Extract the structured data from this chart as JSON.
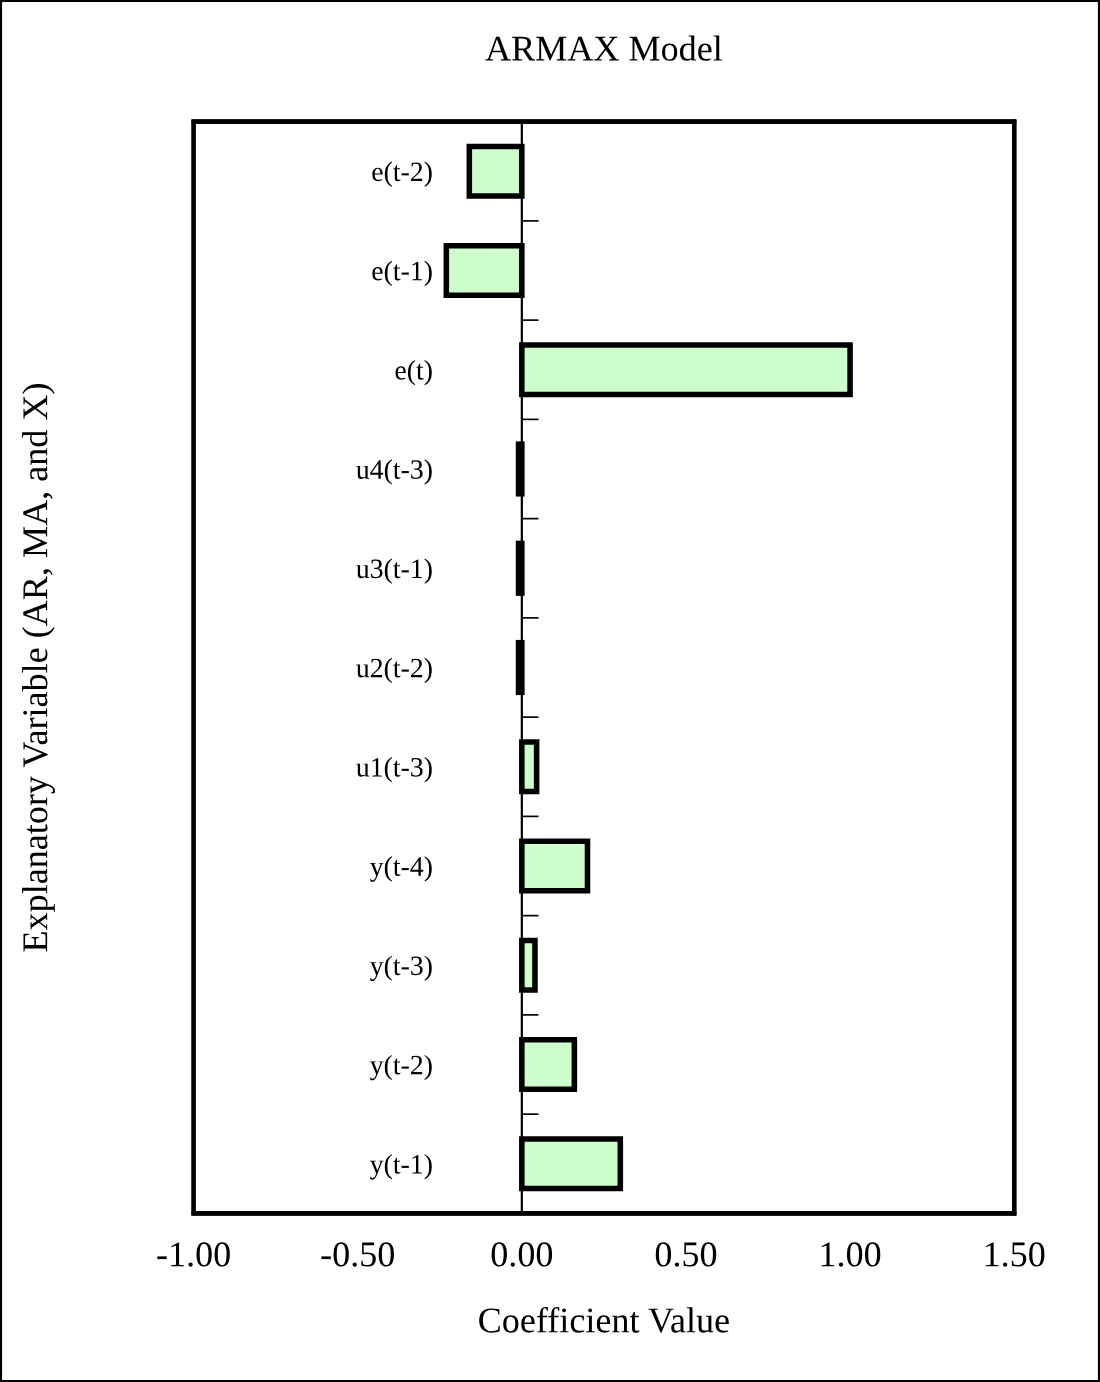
{
  "chart_data": {
    "type": "bar",
    "orientation": "horizontal",
    "title": "ARMAX Model",
    "xlabel": "Coefficient Value",
    "ylabel": "Explanatory Variable (AR, MA, and X)",
    "categories": [
      "e(t-2)",
      "e(t-1)",
      "e(t)",
      "u4(t-3)",
      "u3(t-1)",
      "u2(t-2)",
      "u1(t-3)",
      "y(t-4)",
      "y(t-3)",
      "y(t-2)",
      "y(t-1)"
    ],
    "values": [
      -0.16,
      -0.23,
      1.0,
      -0.01,
      -0.01,
      -0.01,
      0.045,
      0.2,
      0.04,
      0.16,
      0.3
    ],
    "color": "#ccffcc",
    "xlim": [
      -1.0,
      1.5
    ],
    "xticks": [
      {
        "value": -1,
        "label": "-1.00"
      },
      {
        "value": -0.5,
        "label": "-0.50"
      },
      {
        "value": 0,
        "label": "0.00"
      },
      {
        "value": 0.5,
        "label": "0.50"
      },
      {
        "value": 1,
        "label": "1.00"
      },
      {
        "value": 1.5,
        "label": "1.50"
      }
    ],
    "legend": false
  }
}
